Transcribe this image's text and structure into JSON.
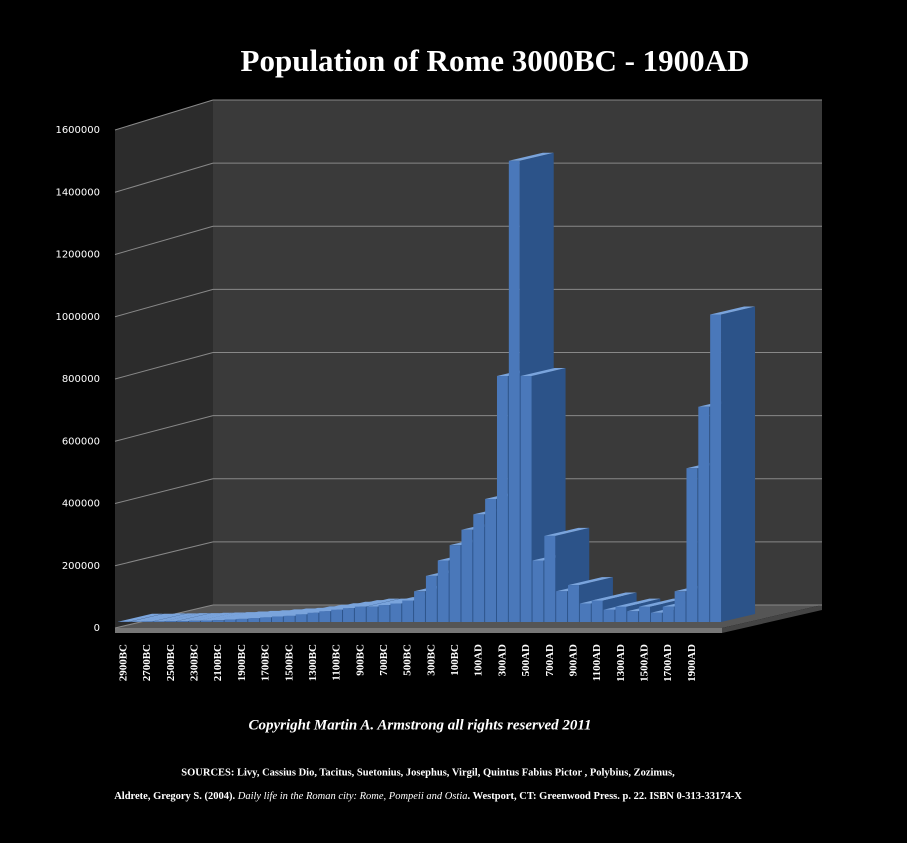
{
  "chart_data": {
    "type": "bar3d",
    "title": "Population of Rome 3000BC - 1900AD",
    "categories": [
      "2900BC",
      null,
      "2700BC",
      null,
      "2500BC",
      null,
      "2300BC",
      null,
      "2100BC",
      null,
      "1900BC",
      null,
      "1700BC",
      null,
      "1500BC",
      null,
      "1300BC",
      null,
      "1100BC",
      null,
      "900BC",
      null,
      "700BC",
      null,
      "500BC",
      null,
      "300BC",
      null,
      "100BC",
      null,
      "100AD",
      null,
      "300AD",
      null,
      "500AD",
      null,
      "700AD",
      null,
      "900AD",
      null,
      "1100AD",
      null,
      "1300AD",
      null,
      "1500AD",
      null,
      "1700AD",
      null,
      "1900AD",
      null,
      null
    ],
    "values": [
      1000,
      1000,
      2000,
      2000,
      3000,
      3000,
      4000,
      5000,
      6000,
      8000,
      10000,
      12000,
      15000,
      18000,
      20000,
      25000,
      30000,
      35000,
      40000,
      45000,
      50000,
      50000,
      55000,
      60000,
      70000,
      100000,
      150000,
      200000,
      250000,
      300000,
      350000,
      400000,
      800000,
      1500000,
      800000,
      200000,
      280000,
      100000,
      120000,
      60000,
      70000,
      40000,
      50000,
      35000,
      50000,
      30000,
      50000,
      100000,
      500000,
      700000,
      1000000
    ],
    "color": "#4a78ba",
    "ylim": [
      0,
      1600000
    ],
    "yticks": [
      0,
      200000,
      400000,
      600000,
      800000,
      1000000,
      1200000,
      1400000,
      1600000
    ],
    "grid": true
  },
  "footer": {
    "copyright": "Copyright Martin A. Armstrong all rights reserved 2011",
    "sources_line1": "SOURCES: Livy, Cassius Dio, Tacitus, Suetonius, Josephus, Virgil, Quintus Fabius Pictor , Polybius, Zozimus,",
    "sources_line2_a": "Aldrete, Gregory S. (2004). ",
    "sources_line2_b": "Daily life in the Roman city: Rome, Pompeii and Ostia",
    "sources_line2_c": ". Westport, CT: Greenwood Press. p. 22. ISBN 0-313-33174-X"
  }
}
